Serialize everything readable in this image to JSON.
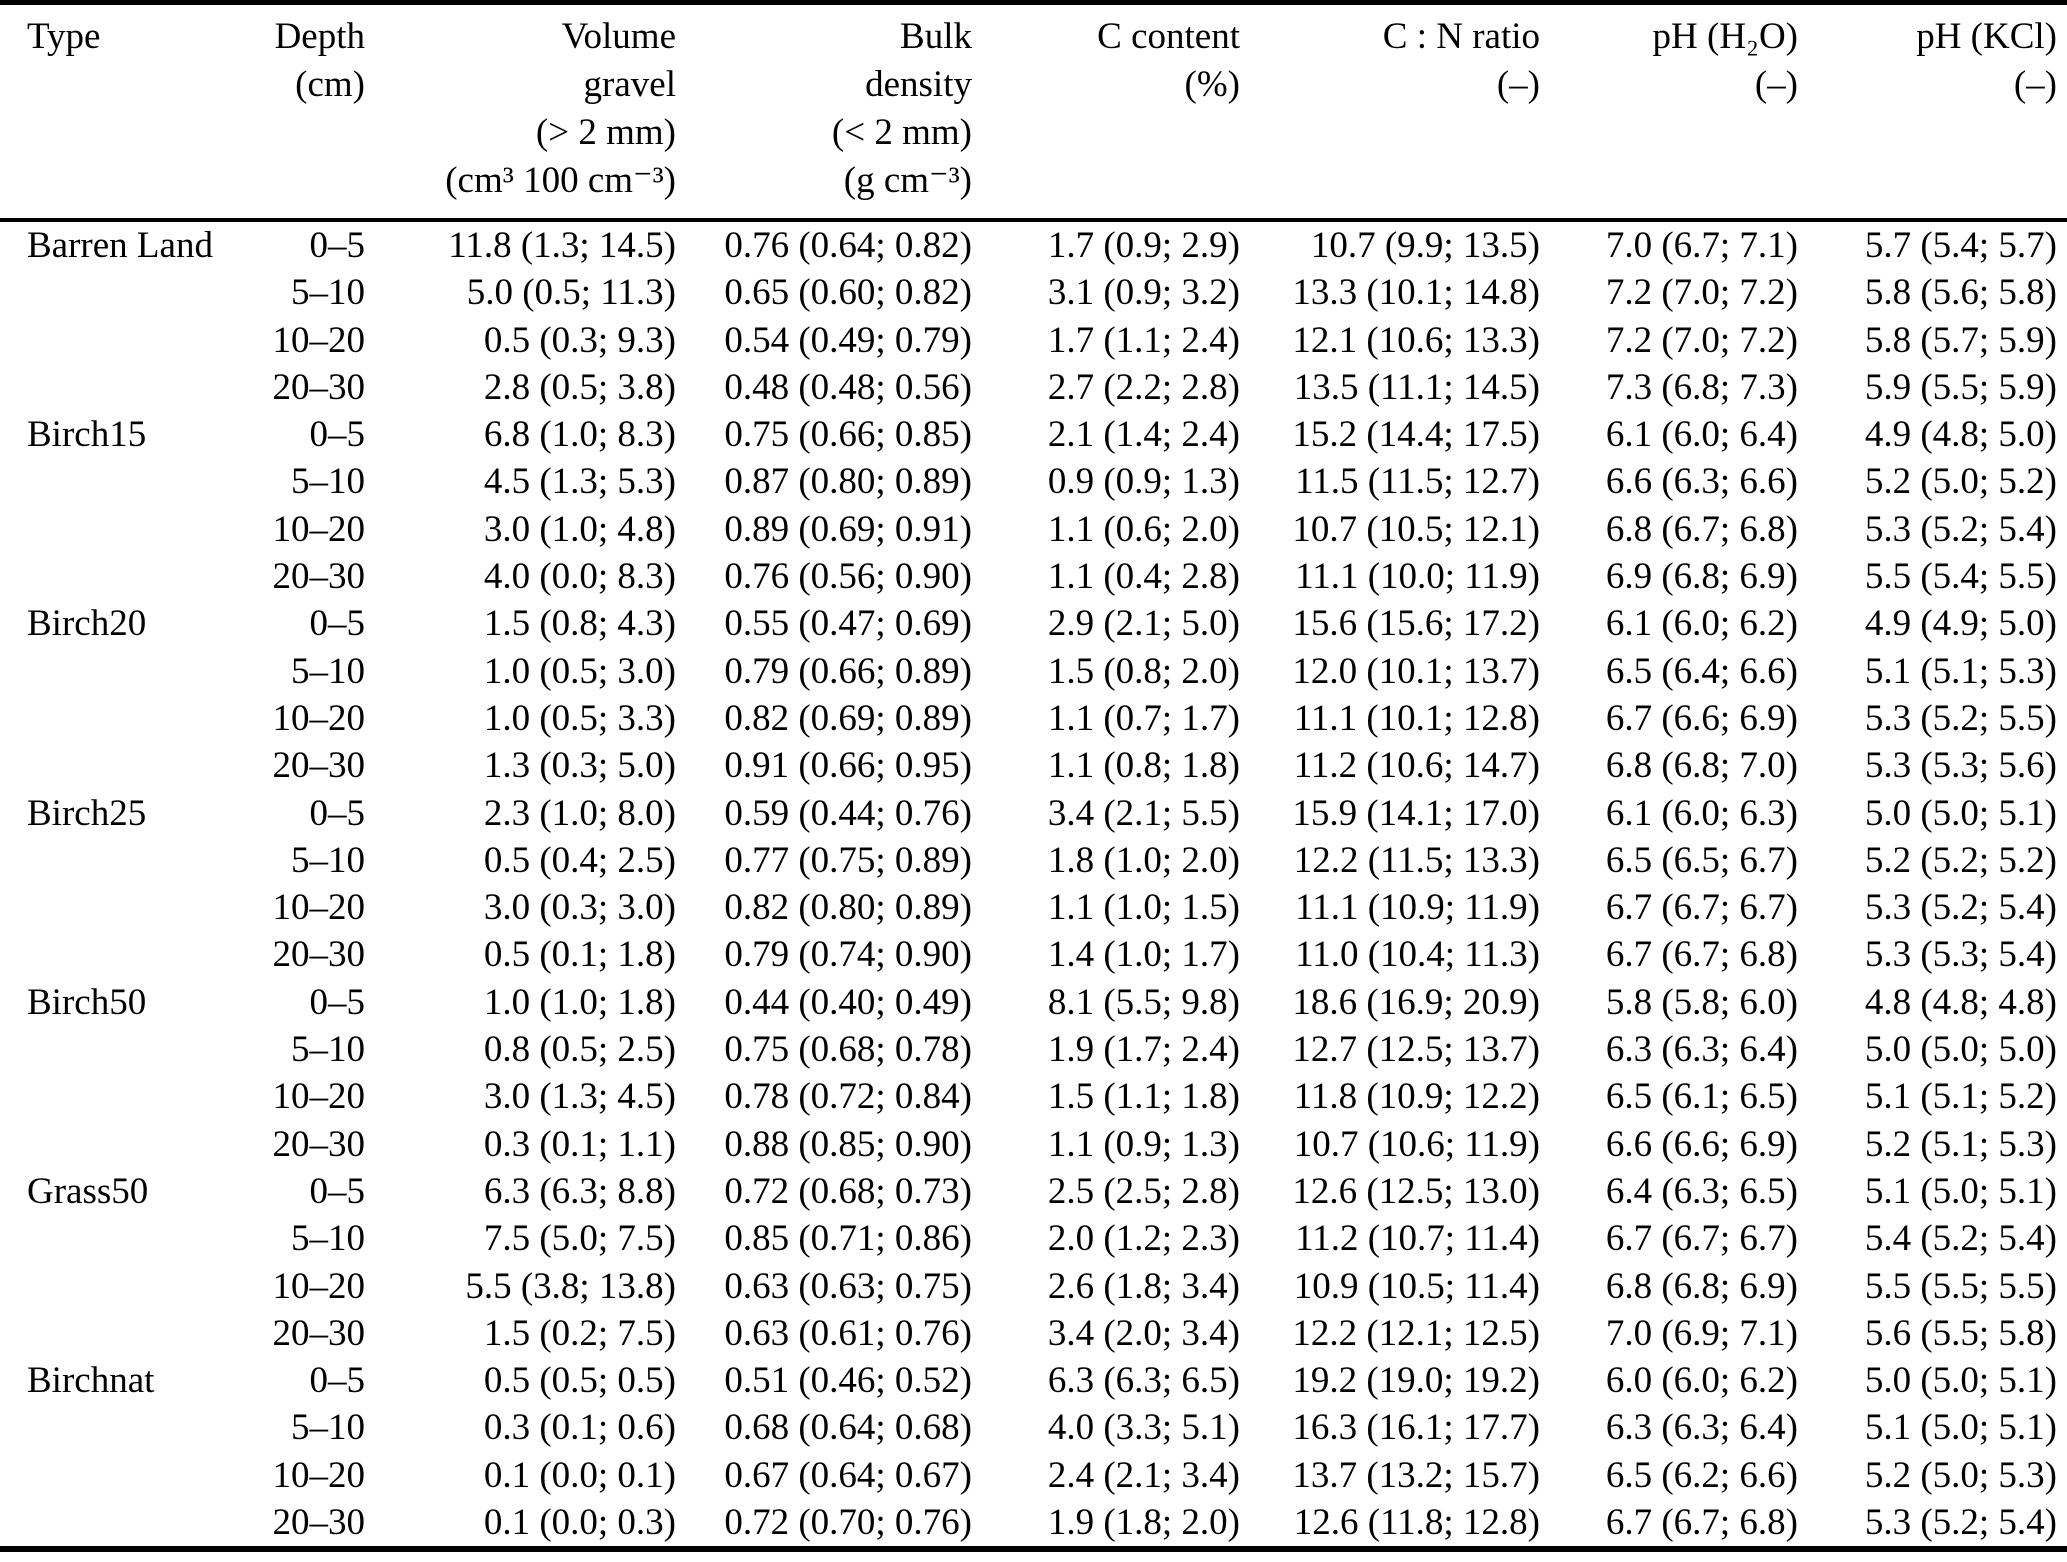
{
  "page": {
    "background_color": "#ffffff",
    "text_color": "#000000"
  },
  "table": {
    "header": {
      "type": [
        "Type"
      ],
      "depth": [
        "Depth",
        "(cm)"
      ],
      "volume_gravel": [
        "Volume",
        "gravel",
        "(> 2 mm)",
        "(cm³ 100 cm⁻³)"
      ],
      "bulk_density": [
        "Bulk",
        "density",
        "(< 2 mm)",
        "(g cm⁻³)"
      ],
      "c_content": [
        "C content",
        "(%)"
      ],
      "cn_ratio": [
        "C : N ratio",
        "(–)"
      ],
      "ph_h2o": [
        "pH (H₂O)",
        "(–)"
      ],
      "ph_kcl": [
        "pH (KCl)",
        "(–)"
      ]
    },
    "groups": [
      {
        "type": "Barren Land",
        "rows": [
          {
            "depth": "0–5",
            "volume_gravel": "11.8 (1.3; 14.5)",
            "bulk_density": "0.76 (0.64; 0.82)",
            "c_content": "1.7 (0.9; 2.9)",
            "cn_ratio": "10.7 (9.9; 13.5)",
            "ph_h2o": "7.0 (6.7; 7.1)",
            "ph_kcl": "5.7 (5.4; 5.7)"
          },
          {
            "depth": "5–10",
            "volume_gravel": "5.0 (0.5; 11.3)",
            "bulk_density": "0.65 (0.60; 0.82)",
            "c_content": "3.1 (0.9; 3.2)",
            "cn_ratio": "13.3 (10.1; 14.8)",
            "ph_h2o": "7.2 (7.0; 7.2)",
            "ph_kcl": "5.8 (5.6; 5.8)"
          },
          {
            "depth": "10–20",
            "volume_gravel": "0.5 (0.3; 9.3)",
            "bulk_density": "0.54 (0.49; 0.79)",
            "c_content": "1.7 (1.1; 2.4)",
            "cn_ratio": "12.1 (10.6; 13.3)",
            "ph_h2o": "7.2 (7.0; 7.2)",
            "ph_kcl": "5.8 (5.7; 5.9)"
          },
          {
            "depth": "20–30",
            "volume_gravel": "2.8 (0.5; 3.8)",
            "bulk_density": "0.48 (0.48; 0.56)",
            "c_content": "2.7 (2.2; 2.8)",
            "cn_ratio": "13.5 (11.1; 14.5)",
            "ph_h2o": "7.3 (6.8; 7.3)",
            "ph_kcl": "5.9 (5.5; 5.9)"
          }
        ]
      },
      {
        "type": "Birch15",
        "rows": [
          {
            "depth": "0–5",
            "volume_gravel": "6.8 (1.0; 8.3)",
            "bulk_density": "0.75 (0.66; 0.85)",
            "c_content": "2.1 (1.4; 2.4)",
            "cn_ratio": "15.2 (14.4; 17.5)",
            "ph_h2o": "6.1 (6.0; 6.4)",
            "ph_kcl": "4.9 (4.8; 5.0)"
          },
          {
            "depth": "5–10",
            "volume_gravel": "4.5 (1.3; 5.3)",
            "bulk_density": "0.87 (0.80; 0.89)",
            "c_content": "0.9 (0.9; 1.3)",
            "cn_ratio": "11.5 (11.5; 12.7)",
            "ph_h2o": "6.6 (6.3; 6.6)",
            "ph_kcl": "5.2 (5.0; 5.2)"
          },
          {
            "depth": "10–20",
            "volume_gravel": "3.0 (1.0; 4.8)",
            "bulk_density": "0.89 (0.69; 0.91)",
            "c_content": "1.1 (0.6; 2.0)",
            "cn_ratio": "10.7 (10.5; 12.1)",
            "ph_h2o": "6.8 (6.7; 6.8)",
            "ph_kcl": "5.3 (5.2; 5.4)"
          },
          {
            "depth": "20–30",
            "volume_gravel": "4.0 (0.0; 8.3)",
            "bulk_density": "0.76 (0.56; 0.90)",
            "c_content": "1.1 (0.4; 2.8)",
            "cn_ratio": "11.1 (10.0; 11.9)",
            "ph_h2o": "6.9 (6.8; 6.9)",
            "ph_kcl": "5.5 (5.4; 5.5)"
          }
        ]
      },
      {
        "type": "Birch20",
        "rows": [
          {
            "depth": "0–5",
            "volume_gravel": "1.5 (0.8; 4.3)",
            "bulk_density": "0.55 (0.47; 0.69)",
            "c_content": "2.9 (2.1; 5.0)",
            "cn_ratio": "15.6 (15.6; 17.2)",
            "ph_h2o": "6.1 (6.0; 6.2)",
            "ph_kcl": "4.9 (4.9; 5.0)"
          },
          {
            "depth": "5–10",
            "volume_gravel": "1.0 (0.5; 3.0)",
            "bulk_density": "0.79 (0.66; 0.89)",
            "c_content": "1.5 (0.8; 2.0)",
            "cn_ratio": "12.0 (10.1; 13.7)",
            "ph_h2o": "6.5 (6.4; 6.6)",
            "ph_kcl": "5.1 (5.1; 5.3)"
          },
          {
            "depth": "10–20",
            "volume_gravel": "1.0 (0.5; 3.3)",
            "bulk_density": "0.82 (0.69; 0.89)",
            "c_content": "1.1 (0.7; 1.7)",
            "cn_ratio": "11.1 (10.1; 12.8)",
            "ph_h2o": "6.7 (6.6; 6.9)",
            "ph_kcl": "5.3 (5.2; 5.5)"
          },
          {
            "depth": "20–30",
            "volume_gravel": "1.3 (0.3; 5.0)",
            "bulk_density": "0.91 (0.66; 0.95)",
            "c_content": "1.1 (0.8; 1.8)",
            "cn_ratio": "11.2 (10.6; 14.7)",
            "ph_h2o": "6.8 (6.8; 7.0)",
            "ph_kcl": "5.3 (5.3; 5.6)"
          }
        ]
      },
      {
        "type": "Birch25",
        "rows": [
          {
            "depth": "0–5",
            "volume_gravel": "2.3 (1.0; 8.0)",
            "bulk_density": "0.59 (0.44; 0.76)",
            "c_content": "3.4 (2.1; 5.5)",
            "cn_ratio": "15.9 (14.1; 17.0)",
            "ph_h2o": "6.1 (6.0; 6.3)",
            "ph_kcl": "5.0 (5.0; 5.1)"
          },
          {
            "depth": "5–10",
            "volume_gravel": "0.5 (0.4; 2.5)",
            "bulk_density": "0.77 (0.75; 0.89)",
            "c_content": "1.8 (1.0; 2.0)",
            "cn_ratio": "12.2 (11.5; 13.3)",
            "ph_h2o": "6.5 (6.5; 6.7)",
            "ph_kcl": "5.2 (5.2; 5.2)"
          },
          {
            "depth": "10–20",
            "volume_gravel": "3.0 (0.3; 3.0)",
            "bulk_density": "0.82 (0.80; 0.89)",
            "c_content": "1.1 (1.0; 1.5)",
            "cn_ratio": "11.1 (10.9; 11.9)",
            "ph_h2o": "6.7 (6.7; 6.7)",
            "ph_kcl": "5.3 (5.2; 5.4)"
          },
          {
            "depth": "20–30",
            "volume_gravel": "0.5 (0.1; 1.8)",
            "bulk_density": "0.79 (0.74; 0.90)",
            "c_content": "1.4 (1.0; 1.7)",
            "cn_ratio": "11.0 (10.4; 11.3)",
            "ph_h2o": "6.7 (6.7; 6.8)",
            "ph_kcl": "5.3 (5.3; 5.4)"
          }
        ]
      },
      {
        "type": "Birch50",
        "rows": [
          {
            "depth": "0–5",
            "volume_gravel": "1.0 (1.0; 1.8)",
            "bulk_density": "0.44 (0.40; 0.49)",
            "c_content": "8.1 (5.5; 9.8)",
            "cn_ratio": "18.6 (16.9; 20.9)",
            "ph_h2o": "5.8 (5.8; 6.0)",
            "ph_kcl": "4.8 (4.8; 4.8)"
          },
          {
            "depth": "5–10",
            "volume_gravel": "0.8 (0.5; 2.5)",
            "bulk_density": "0.75 (0.68; 0.78)",
            "c_content": "1.9 (1.7; 2.4)",
            "cn_ratio": "12.7 (12.5; 13.7)",
            "ph_h2o": "6.3 (6.3; 6.4)",
            "ph_kcl": "5.0 (5.0; 5.0)"
          },
          {
            "depth": "10–20",
            "volume_gravel": "3.0 (1.3; 4.5)",
            "bulk_density": "0.78 (0.72; 0.84)",
            "c_content": "1.5 (1.1; 1.8)",
            "cn_ratio": "11.8 (10.9; 12.2)",
            "ph_h2o": "6.5 (6.1; 6.5)",
            "ph_kcl": "5.1 (5.1; 5.2)"
          },
          {
            "depth": "20–30",
            "volume_gravel": "0.3 (0.1; 1.1)",
            "bulk_density": "0.88 (0.85; 0.90)",
            "c_content": "1.1 (0.9; 1.3)",
            "cn_ratio": "10.7 (10.6; 11.9)",
            "ph_h2o": "6.6 (6.6; 6.9)",
            "ph_kcl": "5.2 (5.1; 5.3)"
          }
        ]
      },
      {
        "type": "Grass50",
        "rows": [
          {
            "depth": "0–5",
            "volume_gravel": "6.3 (6.3; 8.8)",
            "bulk_density": "0.72 (0.68; 0.73)",
            "c_content": "2.5 (2.5; 2.8)",
            "cn_ratio": "12.6 (12.5; 13.0)",
            "ph_h2o": "6.4 (6.3; 6.5)",
            "ph_kcl": "5.1 (5.0; 5.1)"
          },
          {
            "depth": "5–10",
            "volume_gravel": "7.5 (5.0; 7.5)",
            "bulk_density": "0.85 (0.71; 0.86)",
            "c_content": "2.0 (1.2; 2.3)",
            "cn_ratio": "11.2 (10.7; 11.4)",
            "ph_h2o": "6.7 (6.7; 6.7)",
            "ph_kcl": "5.4 (5.2; 5.4)"
          },
          {
            "depth": "10–20",
            "volume_gravel": "5.5 (3.8; 13.8)",
            "bulk_density": "0.63 (0.63; 0.75)",
            "c_content": "2.6 (1.8; 3.4)",
            "cn_ratio": "10.9 (10.5; 11.4)",
            "ph_h2o": "6.8 (6.8; 6.9)",
            "ph_kcl": "5.5 (5.5; 5.5)"
          },
          {
            "depth": "20–30",
            "volume_gravel": "1.5 (0.2; 7.5)",
            "bulk_density": "0.63 (0.61; 0.76)",
            "c_content": "3.4 (2.0; 3.4)",
            "cn_ratio": "12.2 (12.1; 12.5)",
            "ph_h2o": "7.0 (6.9; 7.1)",
            "ph_kcl": "5.6 (5.5; 5.8)"
          }
        ]
      },
      {
        "type": "Birchnat",
        "rows": [
          {
            "depth": "0–5",
            "volume_gravel": "0.5 (0.5; 0.5)",
            "bulk_density": "0.51 (0.46; 0.52)",
            "c_content": "6.3 (6.3; 6.5)",
            "cn_ratio": "19.2 (19.0; 19.2)",
            "ph_h2o": "6.0 (6.0; 6.2)",
            "ph_kcl": "5.0 (5.0; 5.1)"
          },
          {
            "depth": "5–10",
            "volume_gravel": "0.3 (0.1; 0.6)",
            "bulk_density": "0.68 (0.64; 0.68)",
            "c_content": "4.0 (3.3; 5.1)",
            "cn_ratio": "16.3 (16.1; 17.7)",
            "ph_h2o": "6.3 (6.3; 6.4)",
            "ph_kcl": "5.1 (5.0; 5.1)"
          },
          {
            "depth": "10–20",
            "volume_gravel": "0.1 (0.0; 0.1)",
            "bulk_density": "0.67 (0.64; 0.67)",
            "c_content": "2.4 (2.1; 3.4)",
            "cn_ratio": "13.7 (13.2; 15.7)",
            "ph_h2o": "6.5 (6.2; 6.6)",
            "ph_kcl": "5.2 (5.0; 5.3)"
          },
          {
            "depth": "20–30",
            "volume_gravel": "0.1 (0.0; 0.3)",
            "bulk_density": "0.72 (0.70; 0.76)",
            "c_content": "1.9 (1.8; 2.0)",
            "cn_ratio": "12.6 (11.8; 12.8)",
            "ph_h2o": "6.7 (6.7; 6.8)",
            "ph_kcl": "5.3 (5.2; 5.4)"
          }
        ]
      }
    ]
  }
}
